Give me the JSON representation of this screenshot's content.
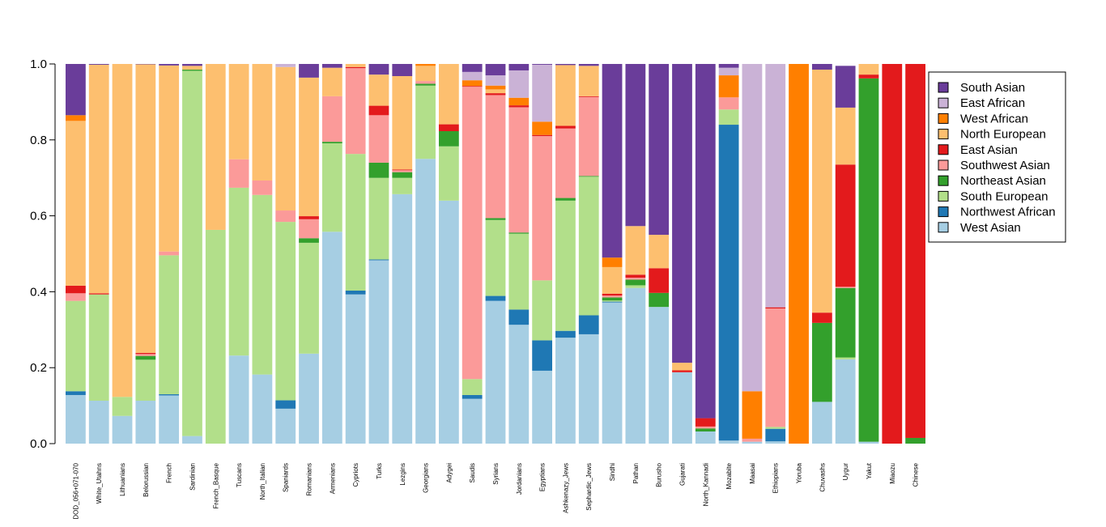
{
  "chart_data": {
    "type": "bar",
    "stacked": true,
    "ylim": [
      0,
      1
    ],
    "yticks": [
      "0.0",
      "0.2",
      "0.4",
      "0.6",
      "0.8",
      "1.0"
    ],
    "legend_position": "right",
    "categories": [
      "DOD_056+071-070",
      "White_Utahns",
      "Lithuanians",
      "Belorussian",
      "French",
      "Sardinian",
      "French_Basque",
      "Tuscans",
      "North_Italian",
      "Spaniards",
      "Romanians",
      "Armenians",
      "Cypriots",
      "Turks",
      "Lezgins",
      "Georgians",
      "Adygei",
      "Saudis",
      "Syrians",
      "Jordanians",
      "Egyptians",
      "Ashkenazy_Jews",
      "Sephardic_Jews",
      "Sindhi",
      "Pathan",
      "Burusho",
      "Gujarati",
      "North_Kannadi",
      "Mozabite",
      "Maasai",
      "Ethiopians",
      "Yoruba",
      "Chuvashs",
      "Uygur",
      "Yakut",
      "Miaozu",
      "Chinese"
    ],
    "series": [
      {
        "name": "West Asian",
        "color": "#a6cee3",
        "values": [
          0.128,
          0.113,
          0.073,
          0.113,
          0.127,
          0.02,
          0.0,
          0.232,
          0.182,
          0.092,
          0.237,
          0.558,
          0.393,
          0.483,
          0.657,
          0.75,
          0.64,
          0.118,
          0.376,
          0.313,
          0.192,
          0.279,
          0.288,
          0.372,
          0.41,
          0.36,
          0.188,
          0.032,
          0.008,
          0.005,
          0.006,
          0.0,
          0.11,
          0.222,
          0.005,
          0.0,
          0.0
        ]
      },
      {
        "name": "Northwest African",
        "color": "#1f78b4",
        "values": [
          0.01,
          0.0,
          0.0,
          0.0,
          0.003,
          0.0,
          0.0,
          0.0,
          0.0,
          0.022,
          0.0,
          0.0,
          0.01,
          0.002,
          0.0,
          0.0,
          0.0,
          0.01,
          0.013,
          0.04,
          0.08,
          0.018,
          0.05,
          0.002,
          0.0,
          0.0,
          0.0,
          0.0,
          0.832,
          0.0,
          0.033,
          0.0,
          0.0,
          0.0,
          0.0,
          0.0,
          0.0
        ]
      },
      {
        "name": "South European",
        "color": "#b2df8a",
        "values": [
          0.238,
          0.28,
          0.05,
          0.108,
          0.366,
          0.962,
          0.563,
          0.442,
          0.473,
          0.47,
          0.292,
          0.233,
          0.36,
          0.215,
          0.043,
          0.193,
          0.143,
          0.042,
          0.2,
          0.2,
          0.158,
          0.343,
          0.365,
          0.003,
          0.007,
          0.0,
          0.0,
          0.0,
          0.04,
          0.0,
          0.005,
          0.0,
          0.0,
          0.005,
          0.0,
          0.0,
          0.0
        ]
      },
      {
        "name": "Northeast Asian",
        "color": "#33a02c",
        "values": [
          0.0,
          0.0,
          0.0,
          0.01,
          0.0,
          0.003,
          0.0,
          0.0,
          0.0,
          0.0,
          0.012,
          0.004,
          0.0,
          0.04,
          0.015,
          0.005,
          0.04,
          0.0,
          0.005,
          0.003,
          0.0,
          0.007,
          0.002,
          0.008,
          0.015,
          0.037,
          0.0,
          0.008,
          0.0,
          0.0,
          0.0,
          0.0,
          0.208,
          0.183,
          0.957,
          0.0,
          0.015
        ]
      },
      {
        "name": "Southwest Asian",
        "color": "#fb9a99",
        "values": [
          0.02,
          0.0,
          0.0,
          0.005,
          0.01,
          0.0,
          0.0,
          0.075,
          0.038,
          0.03,
          0.05,
          0.12,
          0.226,
          0.125,
          0.005,
          0.007,
          0.0,
          0.77,
          0.324,
          0.33,
          0.38,
          0.183,
          0.208,
          0.005,
          0.005,
          0.0,
          0.0,
          0.005,
          0.032,
          0.008,
          0.312,
          0.0,
          0.0,
          0.003,
          0.0,
          0.0,
          0.0
        ]
      },
      {
        "name": "East Asian",
        "color": "#e31a1c",
        "values": [
          0.02,
          0.003,
          0.0,
          0.003,
          0.0,
          0.0,
          0.0,
          0.0,
          0.0,
          0.0,
          0.008,
          0.0,
          0.003,
          0.025,
          0.002,
          0.0,
          0.018,
          0.002,
          0.005,
          0.005,
          0.003,
          0.007,
          0.002,
          0.005,
          0.008,
          0.065,
          0.005,
          0.022,
          0.0,
          0.0,
          0.003,
          0.0,
          0.027,
          0.322,
          0.01,
          1.0,
          0.985
        ]
      },
      {
        "name": "North European",
        "color": "#fdbf6f",
        "values": [
          0.434,
          0.602,
          0.877,
          0.76,
          0.49,
          0.01,
          0.437,
          0.251,
          0.307,
          0.378,
          0.365,
          0.075,
          0.008,
          0.082,
          0.246,
          0.04,
          0.16,
          0.0,
          0.01,
          0.0,
          0.0,
          0.16,
          0.08,
          0.07,
          0.128,
          0.088,
          0.02,
          0.0,
          0.0,
          0.0,
          0.0,
          0.0,
          0.64,
          0.15,
          0.028,
          0.0,
          0.0
        ]
      },
      {
        "name": "West African",
        "color": "#ff7f00",
        "values": [
          0.015,
          0.0,
          0.0,
          0.0,
          0.0,
          0.0,
          0.0,
          0.0,
          0.0,
          0.0,
          0.0,
          0.0,
          0.0,
          0.0,
          0.0,
          0.005,
          0.0,
          0.015,
          0.01,
          0.02,
          0.035,
          0.0,
          0.0,
          0.025,
          0.0,
          0.0,
          0.0,
          0.0,
          0.058,
          0.125,
          0.0,
          1.0,
          0.0,
          0.0,
          0.0,
          0.0,
          0.0
        ]
      },
      {
        "name": "East African",
        "color": "#cab2d6",
        "values": [
          0.0,
          0.0,
          0.0,
          0.0,
          0.0,
          0.0,
          0.0,
          0.0,
          0.0,
          0.008,
          0.0,
          0.0,
          0.0,
          0.0,
          0.0,
          0.0,
          0.0,
          0.022,
          0.027,
          0.072,
          0.15,
          0.0,
          0.0,
          0.0,
          0.0,
          0.0,
          0.0,
          0.0,
          0.02,
          0.862,
          0.642,
          0.0,
          0.0,
          0.0,
          0.0,
          0.0,
          0.0
        ]
      },
      {
        "name": "South Asian",
        "color": "#6a3d9a",
        "values": [
          0.135,
          0.002,
          0.0,
          0.001,
          0.004,
          0.005,
          0.0,
          0.0,
          0.0,
          0.0,
          0.036,
          0.01,
          0.0,
          0.028,
          0.032,
          0.0,
          0.005,
          0.021,
          0.03,
          0.017,
          0.002,
          0.003,
          0.005,
          0.51,
          0.427,
          0.45,
          0.787,
          0.933,
          0.01,
          0.005,
          0.001,
          0.0,
          0.015,
          0.11,
          0.0,
          0.0,
          0.0
        ]
      }
    ],
    "legend_order": [
      "South Asian",
      "East African",
      "West African",
      "North European",
      "East Asian",
      "Southwest Asian",
      "Northeast Asian",
      "South European",
      "Northwest African",
      "West Asian"
    ]
  }
}
